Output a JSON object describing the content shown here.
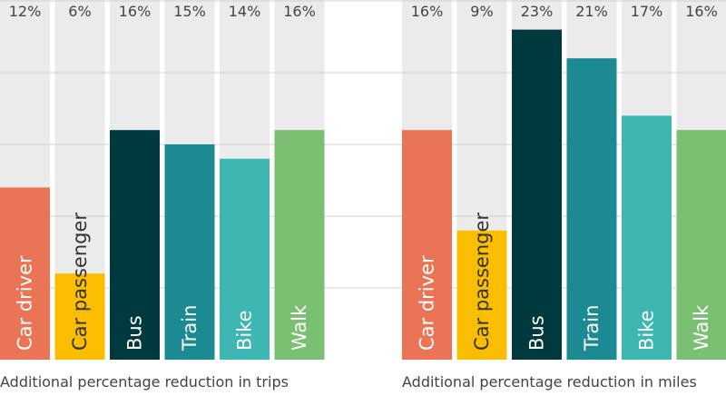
{
  "colors": {
    "column_bg": "#ebebeb",
    "gridline": "#d0d0d0",
    "text_dark": "#444444",
    "label_on_bar": "#ffffff",
    "label_on_yellow": "#333333"
  },
  "chart_data": [
    {
      "type": "bar",
      "title": "",
      "xlabel": "Additional percentage reduction in trips",
      "ylabel": "",
      "ylim": [
        0,
        25
      ],
      "grid": true,
      "categories": [
        "Car driver",
        "Car passenger",
        "Bus",
        "Train",
        "Bike",
        "Walk"
      ],
      "values": [
        12,
        6,
        16,
        15,
        14,
        16
      ],
      "value_labels": [
        "12%",
        "6%",
        "16%",
        "15%",
        "14%",
        "16%"
      ],
      "bar_colors": [
        "#e97556",
        "#fbbd00",
        "#003a3f",
        "#1b8a93",
        "#3eb7b2",
        "#7bbf72"
      ]
    },
    {
      "type": "bar",
      "title": "",
      "xlabel": "Additional percentage reduction in miles",
      "ylabel": "",
      "ylim": [
        0,
        25
      ],
      "grid": true,
      "categories": [
        "Car driver",
        "Car passenger",
        "Bus",
        "Train",
        "Bike",
        "Walk"
      ],
      "values": [
        16,
        9,
        23,
        21,
        17,
        16
      ],
      "value_labels": [
        "16%",
        "9%",
        "23%",
        "21%",
        "17%",
        "16%"
      ],
      "bar_colors": [
        "#e97556",
        "#fbbd00",
        "#003a3f",
        "#1b8a93",
        "#3eb7b2",
        "#7bbf72"
      ]
    }
  ]
}
